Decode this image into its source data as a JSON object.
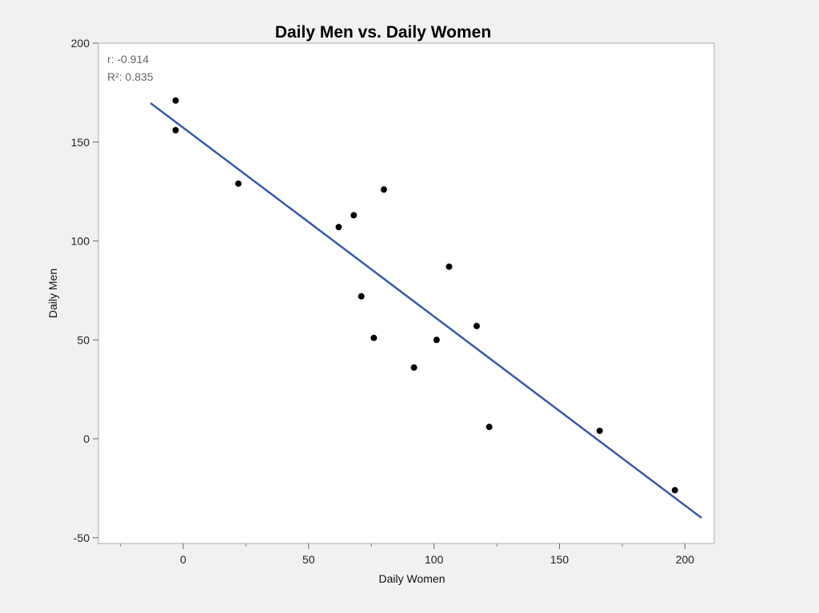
{
  "chart_data": {
    "type": "scatter",
    "title": "Daily Men vs. Daily Women",
    "xlabel": "Daily Women",
    "ylabel": "Daily Men",
    "xlim": [
      -34,
      212
    ],
    "ylim": [
      -53,
      200
    ],
    "xticks": [
      0,
      50,
      100,
      150,
      200
    ],
    "xminor": [
      -25,
      25,
      75,
      125,
      175
    ],
    "yticks": [
      -50,
      0,
      50,
      100,
      150,
      200
    ],
    "grid": false,
    "annotations": [
      "r: -0.914",
      "R²: 0.835"
    ],
    "points": [
      {
        "x": -3,
        "y": 171
      },
      {
        "x": -3,
        "y": 156
      },
      {
        "x": 22,
        "y": 129
      },
      {
        "x": 62,
        "y": 107
      },
      {
        "x": 68,
        "y": 113
      },
      {
        "x": 80,
        "y": 126
      },
      {
        "x": 106,
        "y": 87
      },
      {
        "x": 71,
        "y": 72
      },
      {
        "x": 76,
        "y": 51
      },
      {
        "x": 101,
        "y": 50
      },
      {
        "x": 92,
        "y": 36
      },
      {
        "x": 117,
        "y": 57
      },
      {
        "x": 122,
        "y": 6
      },
      {
        "x": 166,
        "y": 4
      },
      {
        "x": 196,
        "y": -26
      }
    ],
    "fit_line": {
      "x": [
        -13,
        206.6
      ],
      "y": [
        169.7,
        -40.0
      ]
    },
    "colors": {
      "line": "#3a5a9f",
      "point": "#000000"
    }
  }
}
